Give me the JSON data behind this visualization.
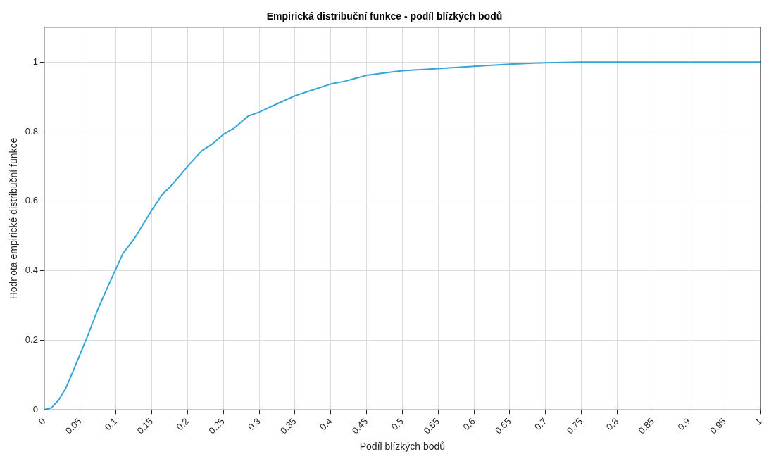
{
  "chart_data": {
    "type": "line",
    "title": "Empirická distribuční funkce - podíl blízkých bodů",
    "xlabel": "Podíl blízkých bodů",
    "ylabel": "Hodnota empirické distribuční funkce",
    "x": [
      0,
      0.01,
      0.02,
      0.03,
      0.04,
      0.05,
      0.06,
      0.075,
      0.09,
      0.1,
      0.11,
      0.125,
      0.14,
      0.15,
      0.165,
      0.175,
      0.19,
      0.2,
      0.22,
      0.235,
      0.25,
      0.265,
      0.285,
      0.3,
      0.325,
      0.35,
      0.375,
      0.4,
      0.42,
      0.45,
      0.48,
      0.5,
      0.55,
      0.6,
      0.65,
      0.7,
      0.75,
      0.85,
      1
    ],
    "series": [
      {
        "color": "#35a4d8",
        "values": [
          0,
          0.006,
          0.028,
          0.062,
          0.11,
          0.16,
          0.21,
          0.29,
          0.36,
          0.405,
          0.45,
          0.49,
          0.54,
          0.574,
          0.62,
          0.64,
          0.675,
          0.7,
          0.745,
          0.765,
          0.792,
          0.81,
          0.845,
          0.856,
          0.88,
          0.903,
          0.92,
          0.937,
          0.945,
          0.962,
          0.97,
          0.975,
          0.981,
          0.988,
          0.994,
          0.998,
          1,
          1,
          1
        ]
      }
    ],
    "xlim": [
      0,
      1
    ],
    "xticks": [
      0,
      0.05,
      0.1,
      0.15,
      0.2,
      0.25,
      0.3,
      0.35,
      0.4,
      0.45,
      0.5,
      0.55,
      0.6,
      0.65,
      0.7,
      0.75,
      0.8,
      0.85,
      0.9,
      0.95,
      1
    ],
    "ylim": [
      0,
      1.1
    ],
    "yticks": [
      0,
      0.2,
      0.4,
      0.6,
      0.8,
      1
    ],
    "grid": true,
    "marker": "none",
    "line_style": "solid",
    "legend": false
  }
}
